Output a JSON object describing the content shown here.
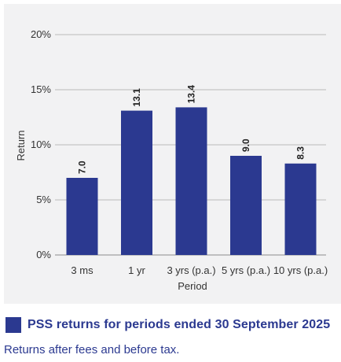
{
  "chart_data": {
    "type": "bar",
    "categories": [
      "3 ms",
      "1 yr",
      "3 yrs (p.a.)",
      "5 yrs (p.a.)",
      "10 yrs (p.a.)"
    ],
    "values": [
      7.0,
      13.1,
      13.4,
      9.0,
      8.3
    ],
    "value_labels": [
      "7.0",
      "13.1",
      "13.4",
      "9.0",
      "8.3"
    ],
    "xlabel": "Period",
    "ylabel": "Return",
    "ylim": [
      0,
      20
    ],
    "yticks": [
      0,
      5,
      10,
      15,
      20
    ],
    "ytick_labels": [
      "0%",
      "5%",
      "10%",
      "15%",
      "20%"
    ],
    "grid": true,
    "bar_color": "#2b3990"
  },
  "legend": {
    "label": "PSS returns for periods ended 30 September 2025",
    "color": "#2b3990"
  },
  "note": "Returns after fees and before tax."
}
